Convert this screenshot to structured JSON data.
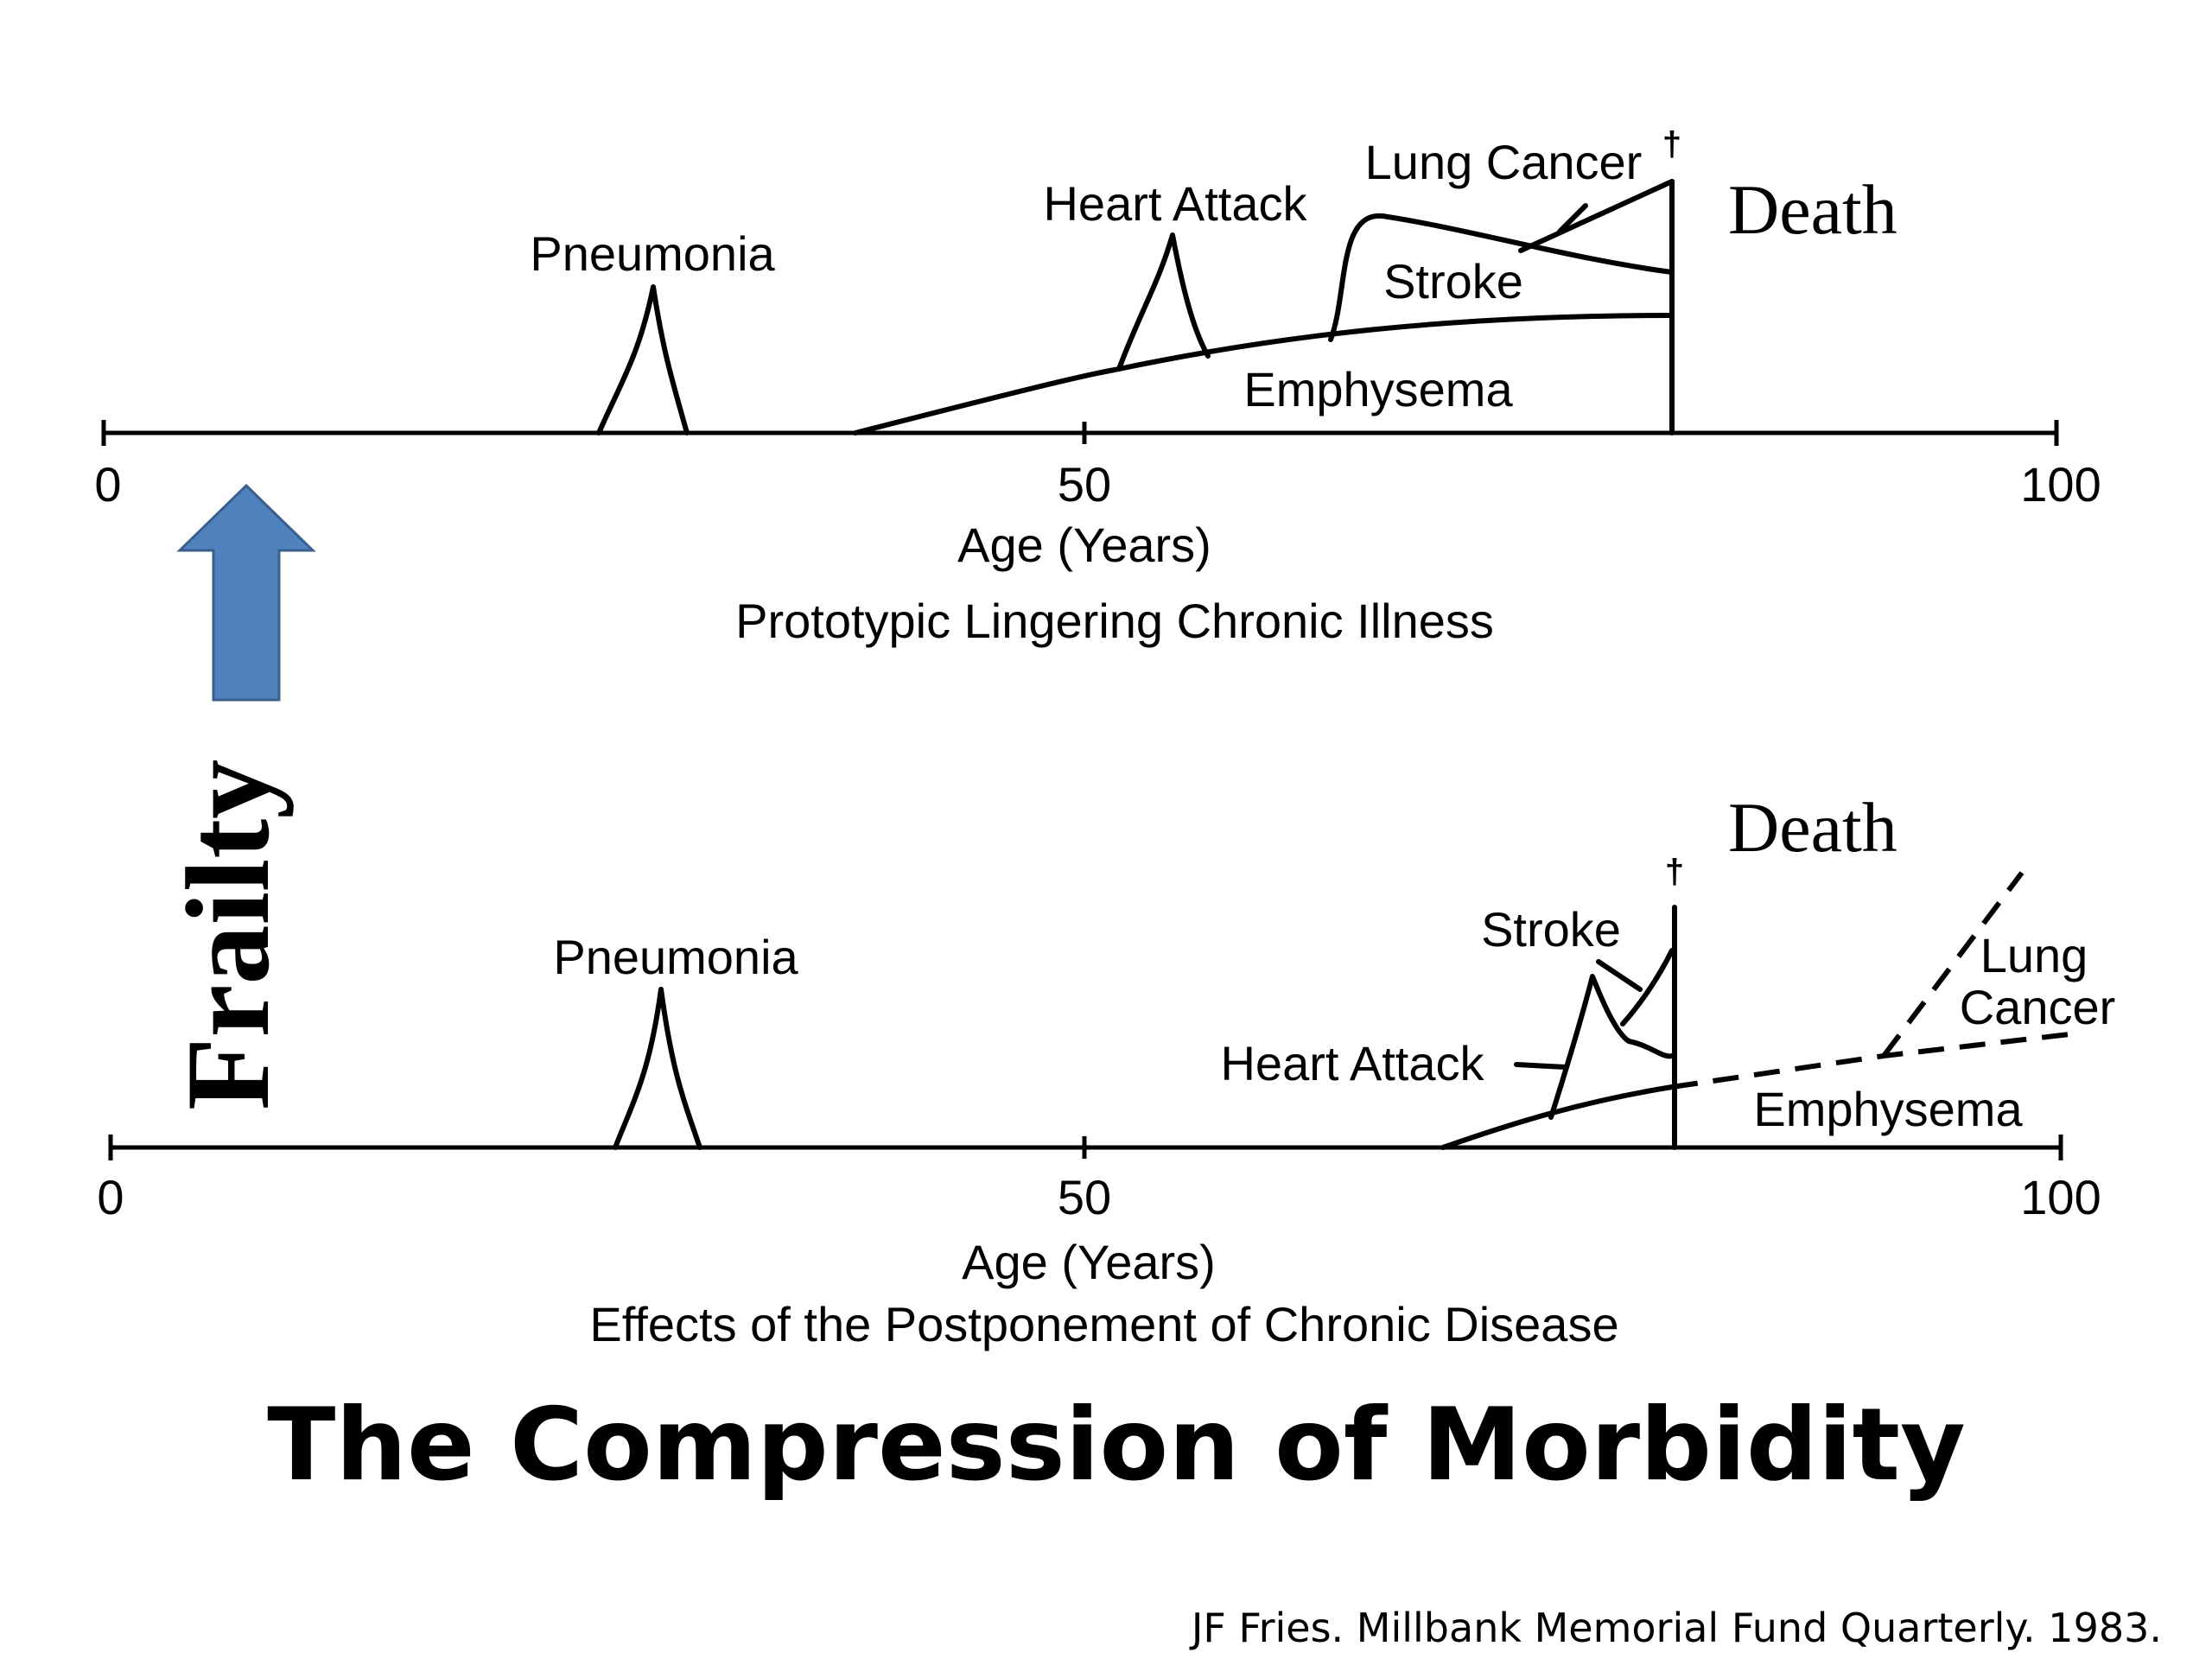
{
  "title": "The Compression of Morbidity",
  "citation": "JF Fries. Millbank Memorial Fund Quarterly. 1983.",
  "frailty_label": "Frailty",
  "arrow_color": "#4f81bd",
  "panels": {
    "top": {
      "caption": "Prototypic Lingering Chronic Illness",
      "axis_label": "Age (Years)",
      "ticks": [
        "0",
        "50",
        "100"
      ],
      "death_label": "Death",
      "dagger": "†",
      "labels": {
        "pneumonia": "Pneumonia",
        "heart_attack": "Heart Attack",
        "lung_cancer": "Lung Cancer",
        "stroke": "Stroke",
        "emphysema": "Emphysema"
      }
    },
    "bottom": {
      "caption": "Effects of the Postponement of Chronic Disease",
      "axis_label": "Age (Years)",
      "ticks": [
        "0",
        "50",
        "100"
      ],
      "death_label": "Death",
      "dagger": "†",
      "labels": {
        "pneumonia": "Pneumonia",
        "stroke": "Stroke",
        "heart_attack": "Heart Attack",
        "lung": "Lung",
        "cancer": "Cancer",
        "emphysema": "Emphysema"
      }
    }
  }
}
